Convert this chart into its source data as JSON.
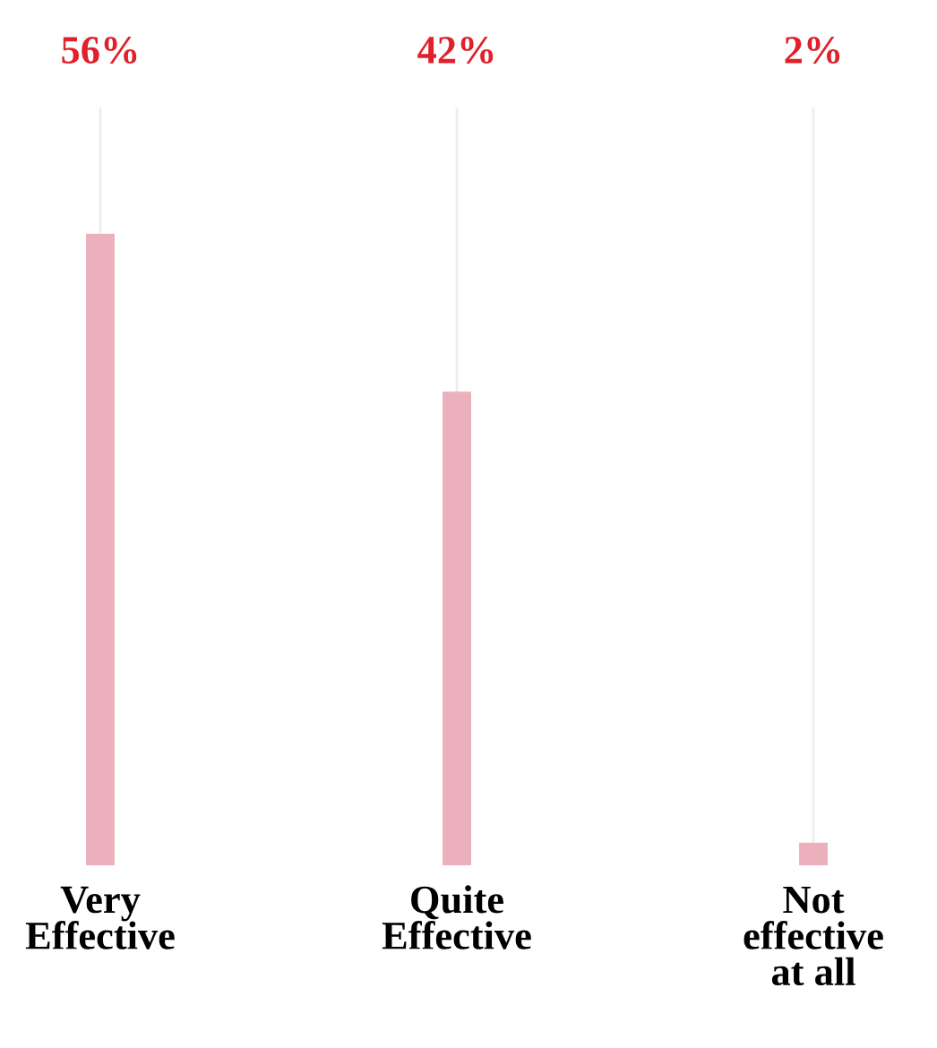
{
  "chart_data": {
    "type": "bar",
    "categories": [
      "Very\nEffective",
      "Quite\nEffective",
      "Not\neffective\nat all"
    ],
    "values": [
      56,
      42,
      2
    ],
    "value_labels": [
      "56%",
      "42%",
      "2%"
    ],
    "color": "#ebb0bb",
    "grid": "x",
    "legend": false
  }
}
